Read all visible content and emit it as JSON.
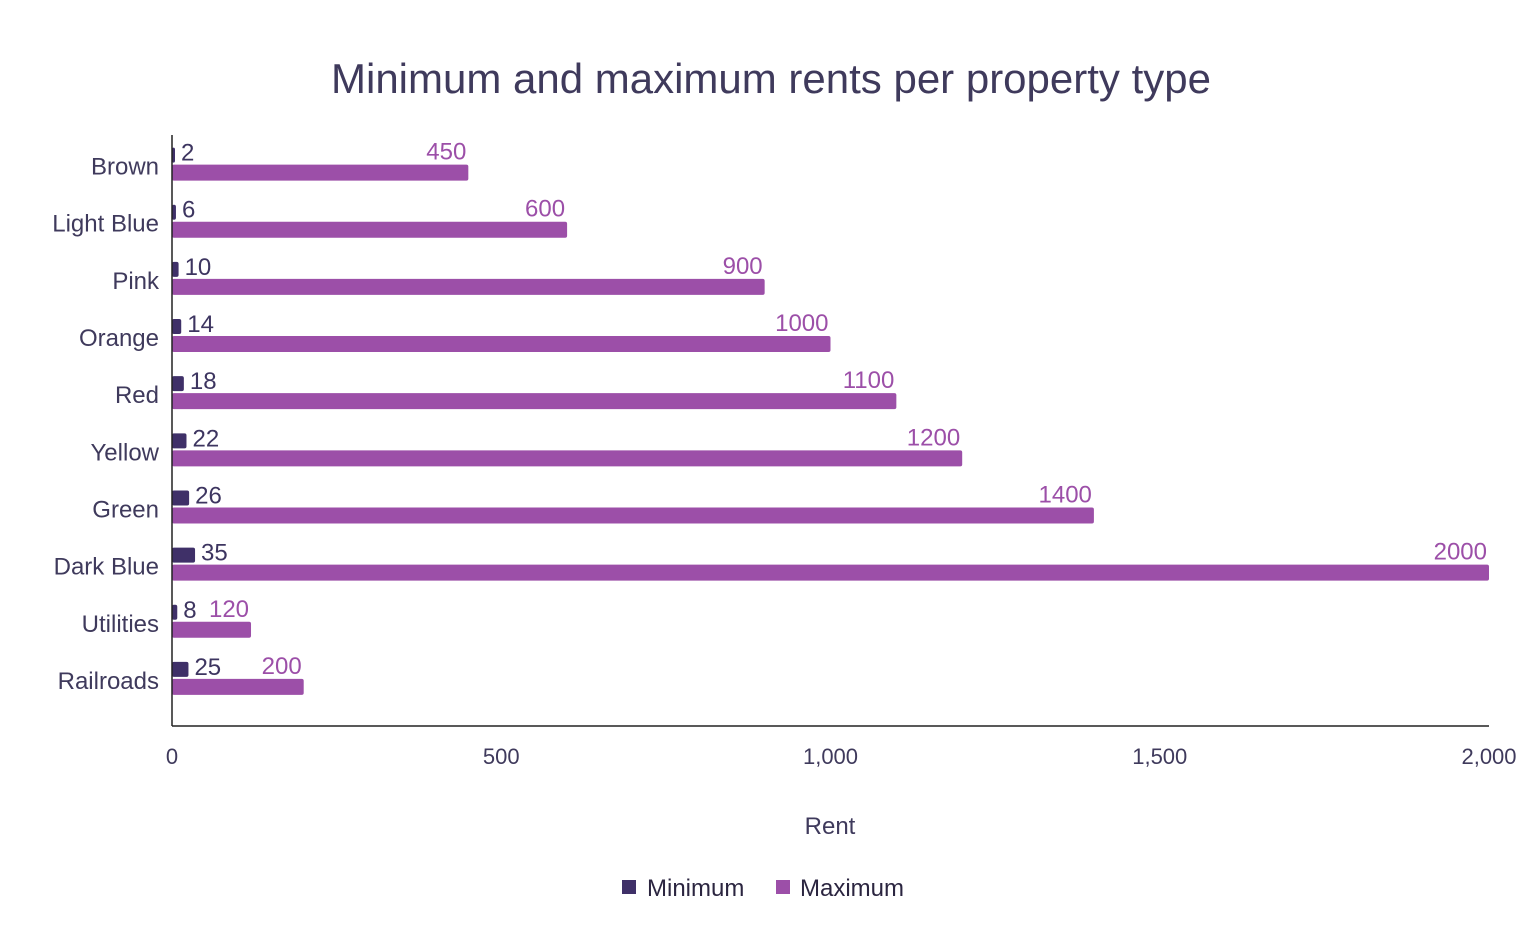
{
  "chart_data": {
    "type": "bar",
    "orientation": "horizontal",
    "title": "Minimum and maximum rents per property type",
    "xlabel": "Rent",
    "ylabel": "",
    "xlim": [
      0,
      2000
    ],
    "xticks": [
      0,
      500,
      1000,
      1500,
      2000
    ],
    "xtick_labels": [
      "0",
      "500",
      "1,000",
      "1,500",
      "2,000"
    ],
    "grid": false,
    "legend": "bottom",
    "categories": [
      "Brown",
      "Light Blue",
      "Pink",
      "Orange",
      "Red",
      "Yellow",
      "Green",
      "Dark Blue",
      "Utilities",
      "Railroads"
    ],
    "series": [
      {
        "name": "Minimum",
        "color": "#3f3068",
        "values": [
          2,
          6,
          10,
          14,
          18,
          22,
          26,
          35,
          8,
          25
        ]
      },
      {
        "name": "Maximum",
        "color": "#9c4fa8",
        "values": [
          450,
          600,
          900,
          1000,
          1100,
          1200,
          1400,
          2000,
          120,
          200
        ]
      }
    ]
  }
}
